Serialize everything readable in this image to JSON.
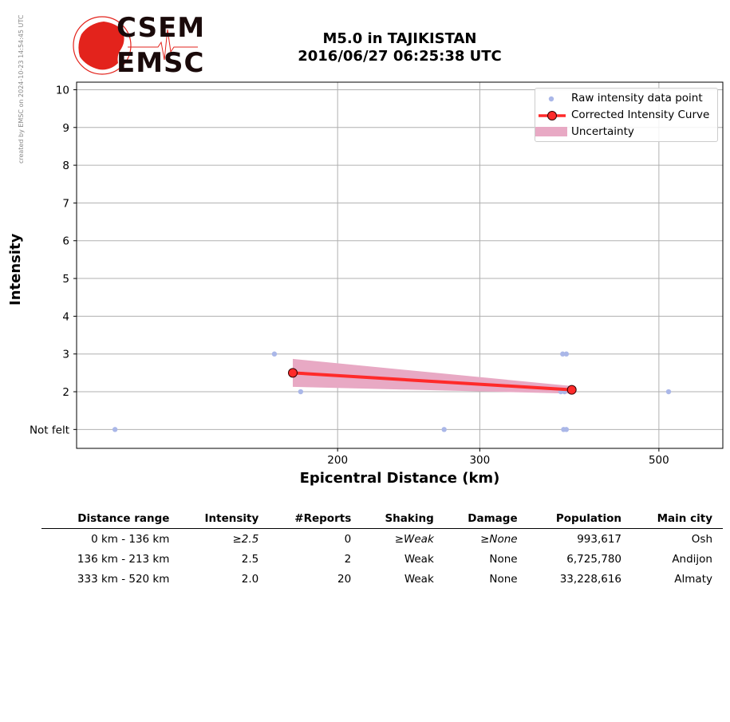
{
  "credit": "created by EMSC on 2024-10-23 14:54:45 UTC",
  "logo": {
    "line1": "CSEM",
    "line2": "EMSC",
    "color": "#e3231c"
  },
  "title": {
    "line1": "M5.0 in TAJIKISTAN",
    "line2": "2016/06/27 06:25:38 UTC"
  },
  "chart_data": {
    "type": "scatter",
    "xlabel": "Epicentral Distance (km)",
    "ylabel": "Intensity",
    "x_scale": "log",
    "xlim": [
      95,
      600
    ],
    "ylim": [
      0.5,
      10.2
    ],
    "x_ticks": [
      200,
      300,
      500
    ],
    "y_ticks": [
      {
        "value": 1,
        "label": "Not felt"
      },
      {
        "value": 2,
        "label": "2"
      },
      {
        "value": 3,
        "label": "3"
      },
      {
        "value": 4,
        "label": "4"
      },
      {
        "value": 5,
        "label": "5"
      },
      {
        "value": 6,
        "label": "6"
      },
      {
        "value": 7,
        "label": "7"
      },
      {
        "value": 8,
        "label": "8"
      },
      {
        "value": 9,
        "label": "9"
      },
      {
        "value": 10,
        "label": "10"
      }
    ],
    "grid": true,
    "legend_position": "top-right",
    "series": [
      {
        "name": "Raw intensity data point",
        "kind": "points",
        "color": "#aab7e8",
        "points": [
          {
            "x": 106,
            "y": 1
          },
          {
            "x": 167,
            "y": 3
          },
          {
            "x": 180,
            "y": 2
          },
          {
            "x": 271,
            "y": 1
          },
          {
            "x": 380,
            "y": 3
          },
          {
            "x": 384,
            "y": 3
          },
          {
            "x": 378,
            "y": 2
          },
          {
            "x": 382,
            "y": 2
          },
          {
            "x": 381,
            "y": 1
          },
          {
            "x": 384,
            "y": 1
          },
          {
            "x": 514,
            "y": 2
          }
        ]
      },
      {
        "name": "Corrected Intensity Curve",
        "kind": "line",
        "color": "#ff2a2a",
        "points": [
          {
            "x": 176,
            "y": 2.5
          },
          {
            "x": 390,
            "y": 2.05
          }
        ]
      },
      {
        "name": "Uncertainty",
        "kind": "band",
        "color": "#e8a9c4",
        "upper": [
          {
            "x": 176,
            "y": 2.87
          },
          {
            "x": 390,
            "y": 2.15
          }
        ],
        "lower": [
          {
            "x": 176,
            "y": 2.13
          },
          {
            "x": 390,
            "y": 1.95
          }
        ]
      }
    ]
  },
  "table": {
    "headers": [
      "Distance range",
      "Intensity",
      "#Reports",
      "Shaking",
      "Damage",
      "Population",
      "Main city"
    ],
    "rows": [
      [
        "0 km -  136 km",
        "≥2.5",
        "0",
        "≥Weak",
        "≥None",
        "993,617",
        "Osh"
      ],
      [
        "136 km -  213 km",
        "2.5",
        "2",
        "Weak",
        "None",
        "6,725,780",
        "Andijon"
      ],
      [
        "333 km -  520 km",
        "2.0",
        "20",
        "Weak",
        "None",
        "33,228,616",
        "Almaty"
      ]
    ]
  }
}
